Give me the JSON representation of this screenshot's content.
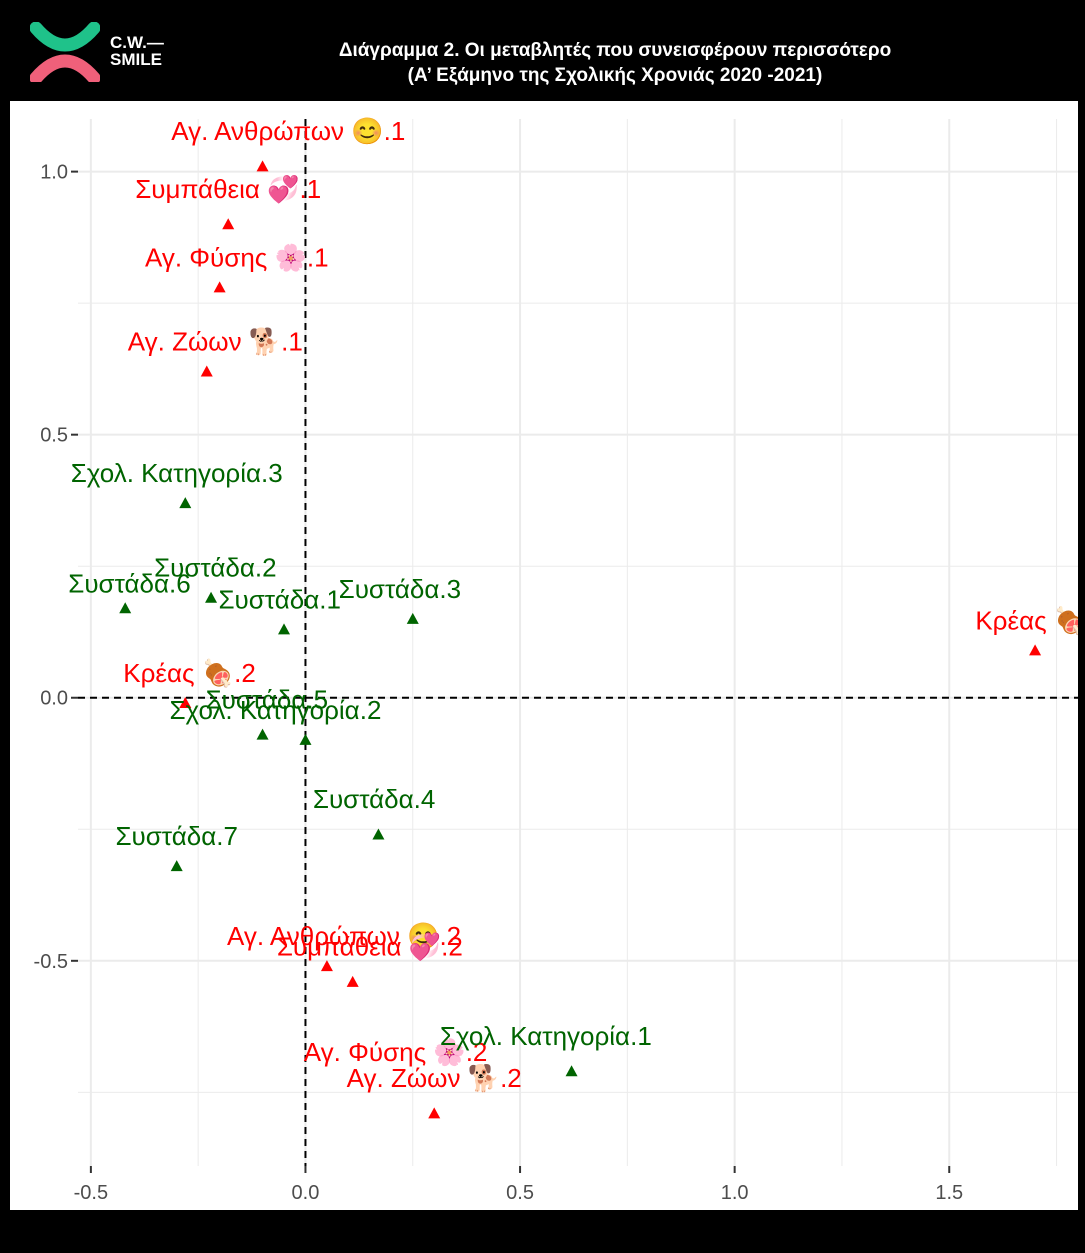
{
  "header": {
    "logo_line1": "C.W.—",
    "logo_line2": "SMILE",
    "title_line1": "Διάγραμμα 2. Οι μεταβλητές που συνεισφέρουν περισσότερο",
    "title_line2": "(Α’ Εξάμηνο της Σχολικής Χρονιάς 2020 -2021)"
  },
  "colors": {
    "red": "#ff0000",
    "green": "#006400",
    "logo_green": "#1fc28a",
    "logo_red": "#f0607a",
    "grid": "#ebebeb"
  },
  "chart_data": {
    "type": "scatter",
    "title": "",
    "xlabel": "",
    "ylabel": "",
    "xlim": [
      -0.53,
      1.8
    ],
    "ylim": [
      -0.89,
      1.1
    ],
    "x_ticks": [
      -0.5,
      0.0,
      0.5,
      1.0,
      1.5
    ],
    "x_tick_labels": [
      "-0.5",
      "0.0",
      "0.5",
      "1.0",
      "1.5"
    ],
    "y_ticks": [
      -0.5,
      0.0,
      0.5,
      1.0
    ],
    "y_tick_labels": [
      "-0.5",
      "0.0",
      "0.5",
      "1.0"
    ],
    "grid": true,
    "reference_lines": {
      "x": 0,
      "y": 0,
      "style": "dashed"
    },
    "marker": "triangle",
    "series": [
      {
        "color": "red",
        "points": [
          {
            "label": "Αγ. Ανθρώπων 😊.1",
            "x": -0.1,
            "y": 1.01,
            "lx": -0.04,
            "ly": 1.06
          },
          {
            "label": "Συμπάθεια 💞.1",
            "x": -0.18,
            "y": 0.9,
            "lx": -0.18,
            "ly": 0.95
          },
          {
            "label": "Αγ. Φύσης 🌸.1",
            "x": -0.2,
            "y": 0.78,
            "lx": -0.16,
            "ly": 0.82
          },
          {
            "label": "Αγ. Ζώων 🐕.1",
            "x": -0.23,
            "y": 0.62,
            "lx": -0.21,
            "ly": 0.66
          },
          {
            "label": "Κρέας 🍖",
            "x": 1.7,
            "y": 0.09,
            "lx": 1.69,
            "ly": 0.13
          },
          {
            "label": "Κρέας 🍖.2",
            "x": -0.28,
            "y": -0.01,
            "lx": -0.27,
            "ly": 0.03
          },
          {
            "label": "Αγ. Ανθρώπων 😊.2",
            "x": 0.05,
            "y": -0.51,
            "lx": 0.09,
            "ly": -0.47
          },
          {
            "label": "Συμπάθεια 💞.2",
            "x": 0.11,
            "y": -0.54,
            "lx": 0.15,
            "ly": -0.49
          },
          {
            "label": "Αγ. Φύσης 🌸.2",
            "x": 0.35,
            "y": -0.67,
            "lx": 0.21,
            "ly": -0.69
          },
          {
            "label": "Αγ. Ζώων 🐕.2",
            "x": 0.3,
            "y": -0.79,
            "lx": 0.3,
            "ly": -0.74
          }
        ]
      },
      {
        "color": "green",
        "points": [
          {
            "label": "Σχολ. Κατηγορία.3",
            "x": -0.28,
            "y": 0.37,
            "lx": -0.3,
            "ly": 0.41
          },
          {
            "label": "Συστάδα.2",
            "x": -0.22,
            "y": 0.19,
            "lx": -0.21,
            "ly": 0.23
          },
          {
            "label": "Συστάδα.6",
            "x": -0.42,
            "y": 0.17,
            "lx": -0.41,
            "ly": 0.2
          },
          {
            "label": "Συστάδα.1",
            "x": -0.05,
            "y": 0.13,
            "lx": -0.06,
            "ly": 0.17
          },
          {
            "label": "Συστάδα.3",
            "x": 0.25,
            "y": 0.15,
            "lx": 0.22,
            "ly": 0.19
          },
          {
            "label": "Συστάδα.5",
            "x": -0.1,
            "y": -0.07,
            "lx": -0.09,
            "ly": -0.02
          },
          {
            "label": "Σχολ. Κατηγορία.2",
            "x": 0.0,
            "y": -0.08,
            "lx": -0.07,
            "ly": -0.04
          },
          {
            "label": "Συστάδα.4",
            "x": 0.17,
            "y": -0.26,
            "lx": 0.16,
            "ly": -0.21
          },
          {
            "label": "Συστάδα.7",
            "x": -0.3,
            "y": -0.32,
            "lx": -0.3,
            "ly": -0.28
          },
          {
            "label": "Σχολ. Κατηγορία.1",
            "x": 0.62,
            "y": -0.71,
            "lx": 0.56,
            "ly": -0.66
          }
        ]
      }
    ]
  }
}
